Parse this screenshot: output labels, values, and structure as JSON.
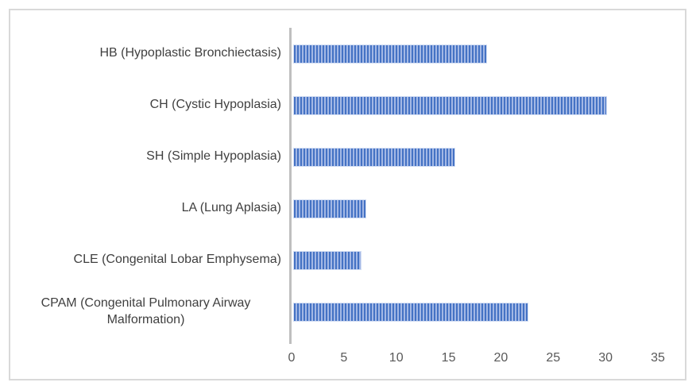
{
  "chart_data": {
    "type": "bar",
    "orientation": "horizontal",
    "title": "",
    "xlabel": "",
    "ylabel": "",
    "grid": false,
    "legend": false,
    "categories": [
      "HB (Hypoplastic Bronchiectasis)",
      "CH (Cystic Hypoplasia)",
      "SH (Simple Hypoplasia)",
      "LA (Lung Aplasia)",
      "CLE (Congenital Lobar Emphysema)",
      "CPAM (Congenital Pulmonary Airway Malformation)"
    ],
    "values": [
      18.5,
      30,
      15.5,
      7,
      6.5,
      22.5
    ],
    "xlim": [
      0,
      35
    ],
    "x_ticks": [
      0,
      5,
      10,
      15,
      20,
      25,
      30,
      35
    ],
    "bar_pattern": "light-vertical-stripes",
    "colors": {
      "bar_primary": "#4472C4",
      "bar_stripe_light": "#A3B8E5",
      "axis_line": "#BFBFBF",
      "tick_label": "#595959",
      "category_label": "#404040",
      "frame_border": "#D9D9D9",
      "background": "#FFFFFF"
    }
  }
}
